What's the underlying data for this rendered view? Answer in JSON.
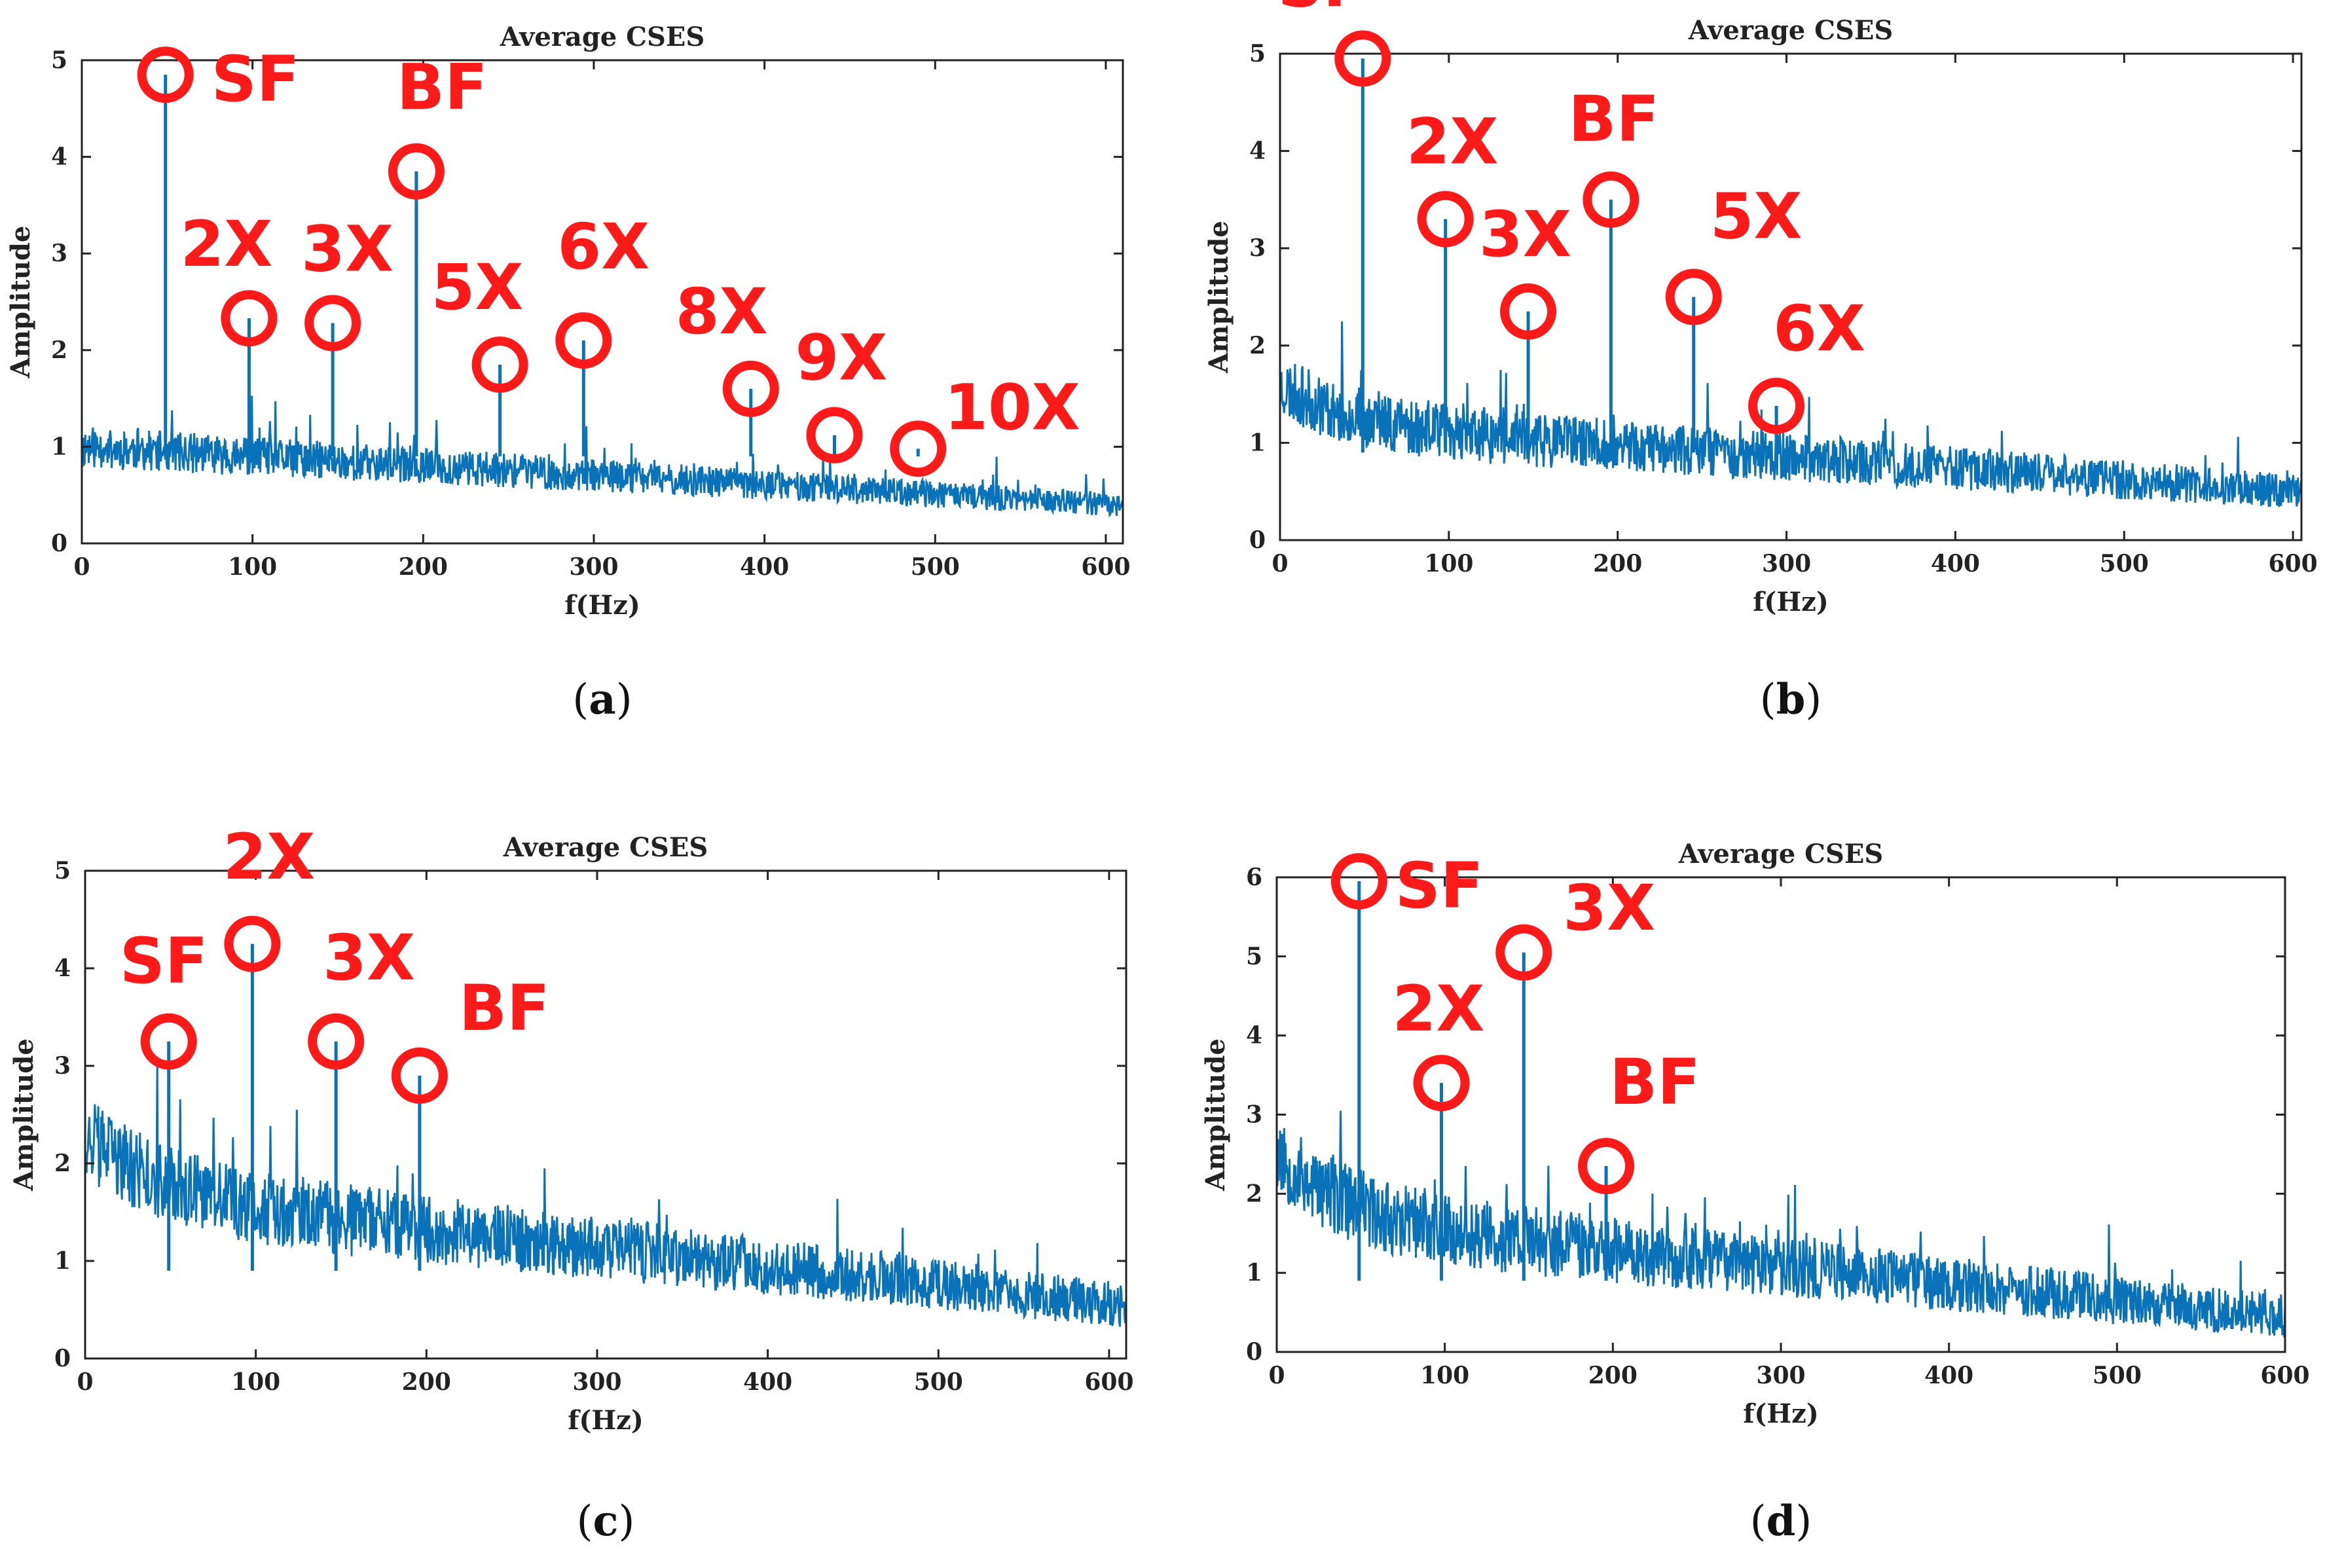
{
  "colors": {
    "signal": "#0a72b8",
    "annotation": "#ff1a1a",
    "axis": "#222222"
  },
  "chart_data": [
    {
      "type": "line",
      "panel": "(a)",
      "title": "Average CSES",
      "xlabel": "f(Hz)",
      "ylabel": "Amplitude",
      "xlim": [
        0,
        610
      ],
      "ylim": [
        0,
        5
      ],
      "xticks": [
        0,
        100,
        200,
        300,
        400,
        500,
        600
      ],
      "yticks": [
        0,
        1,
        2,
        3,
        4,
        5
      ],
      "noise": {
        "start": 1.0,
        "end": 0.4,
        "spread": 0.22,
        "seed": 11,
        "low_boost": 0.0
      },
      "peaks": [
        {
          "label": "SF",
          "x": 49,
          "y": 4.85
        },
        {
          "label": "2X",
          "x": 98,
          "y": 2.33
        },
        {
          "label": "3X",
          "x": 147,
          "y": 2.28
        },
        {
          "label": "BF",
          "x": 196,
          "y": 3.85
        },
        {
          "label": "5X",
          "x": 245,
          "y": 1.85
        },
        {
          "label": "6X",
          "x": 294,
          "y": 2.1
        },
        {
          "label": "8X",
          "x": 392,
          "y": 1.6
        },
        {
          "label": "9X",
          "x": 441,
          "y": 1.12
        },
        {
          "label": "10X",
          "x": 490,
          "y": 0.98
        }
      ]
    },
    {
      "type": "line",
      "panel": "(b)",
      "title": "Average CSES",
      "xlabel": "f(Hz)",
      "ylabel": "Amplitude",
      "xlim": [
        0,
        605
      ],
      "ylim": [
        0,
        5
      ],
      "xticks": [
        0,
        100,
        200,
        300,
        400,
        500,
        600
      ],
      "yticks": [
        0,
        1,
        2,
        3,
        4,
        5
      ],
      "noise": {
        "start": 1.2,
        "end": 0.5,
        "spread": 0.32,
        "seed": 23,
        "low_boost": 0.4
      },
      "peaks": [
        {
          "label": "SF",
          "x": 49,
          "y": 4.95
        },
        {
          "label": "2X",
          "x": 98,
          "y": 3.3
        },
        {
          "label": "3X",
          "x": 147,
          "y": 2.35
        },
        {
          "label": "BF",
          "x": 196,
          "y": 3.5
        },
        {
          "label": "5X",
          "x": 245,
          "y": 2.5
        },
        {
          "label": "6X",
          "x": 294,
          "y": 1.38
        }
      ]
    },
    {
      "type": "line",
      "panel": "(c)",
      "title": "Average CSES",
      "xlabel": "f(Hz)",
      "ylabel": "Amplitude",
      "xlim": [
        0,
        610
      ],
      "ylim": [
        0,
        5
      ],
      "xticks": [
        0,
        100,
        200,
        300,
        400,
        500,
        600
      ],
      "yticks": [
        0,
        1,
        2,
        3,
        4,
        5
      ],
      "noise": {
        "start": 1.7,
        "end": 0.55,
        "spread": 0.42,
        "seed": 37,
        "low_boost": 0.6
      },
      "peaks": [
        {
          "label": "SF",
          "x": 49,
          "y": 3.25
        },
        {
          "label": "2X",
          "x": 98,
          "y": 4.25
        },
        {
          "label": "3X",
          "x": 147,
          "y": 3.25
        },
        {
          "label": "BF",
          "x": 196,
          "y": 2.9
        }
      ]
    },
    {
      "type": "line",
      "panel": "(d)",
      "title": "Average CSES",
      "xlabel": "f(Hz)",
      "ylabel": "Amplitude",
      "xlim": [
        0,
        600
      ],
      "ylim": [
        0,
        6
      ],
      "xticks": [
        0,
        100,
        200,
        300,
        400,
        500,
        600
      ],
      "yticks": [
        0,
        1,
        2,
        3,
        4,
        5,
        6
      ],
      "noise": {
        "start": 1.7,
        "end": 0.45,
        "spread": 0.5,
        "seed": 53,
        "low_boost": 0.8
      },
      "peaks": [
        {
          "label": "SF",
          "x": 49,
          "y": 5.95
        },
        {
          "label": "2X",
          "x": 98,
          "y": 3.4
        },
        {
          "label": "3X",
          "x": 147,
          "y": 5.05
        },
        {
          "label": "BF",
          "x": 196,
          "y": 2.35
        }
      ]
    }
  ]
}
